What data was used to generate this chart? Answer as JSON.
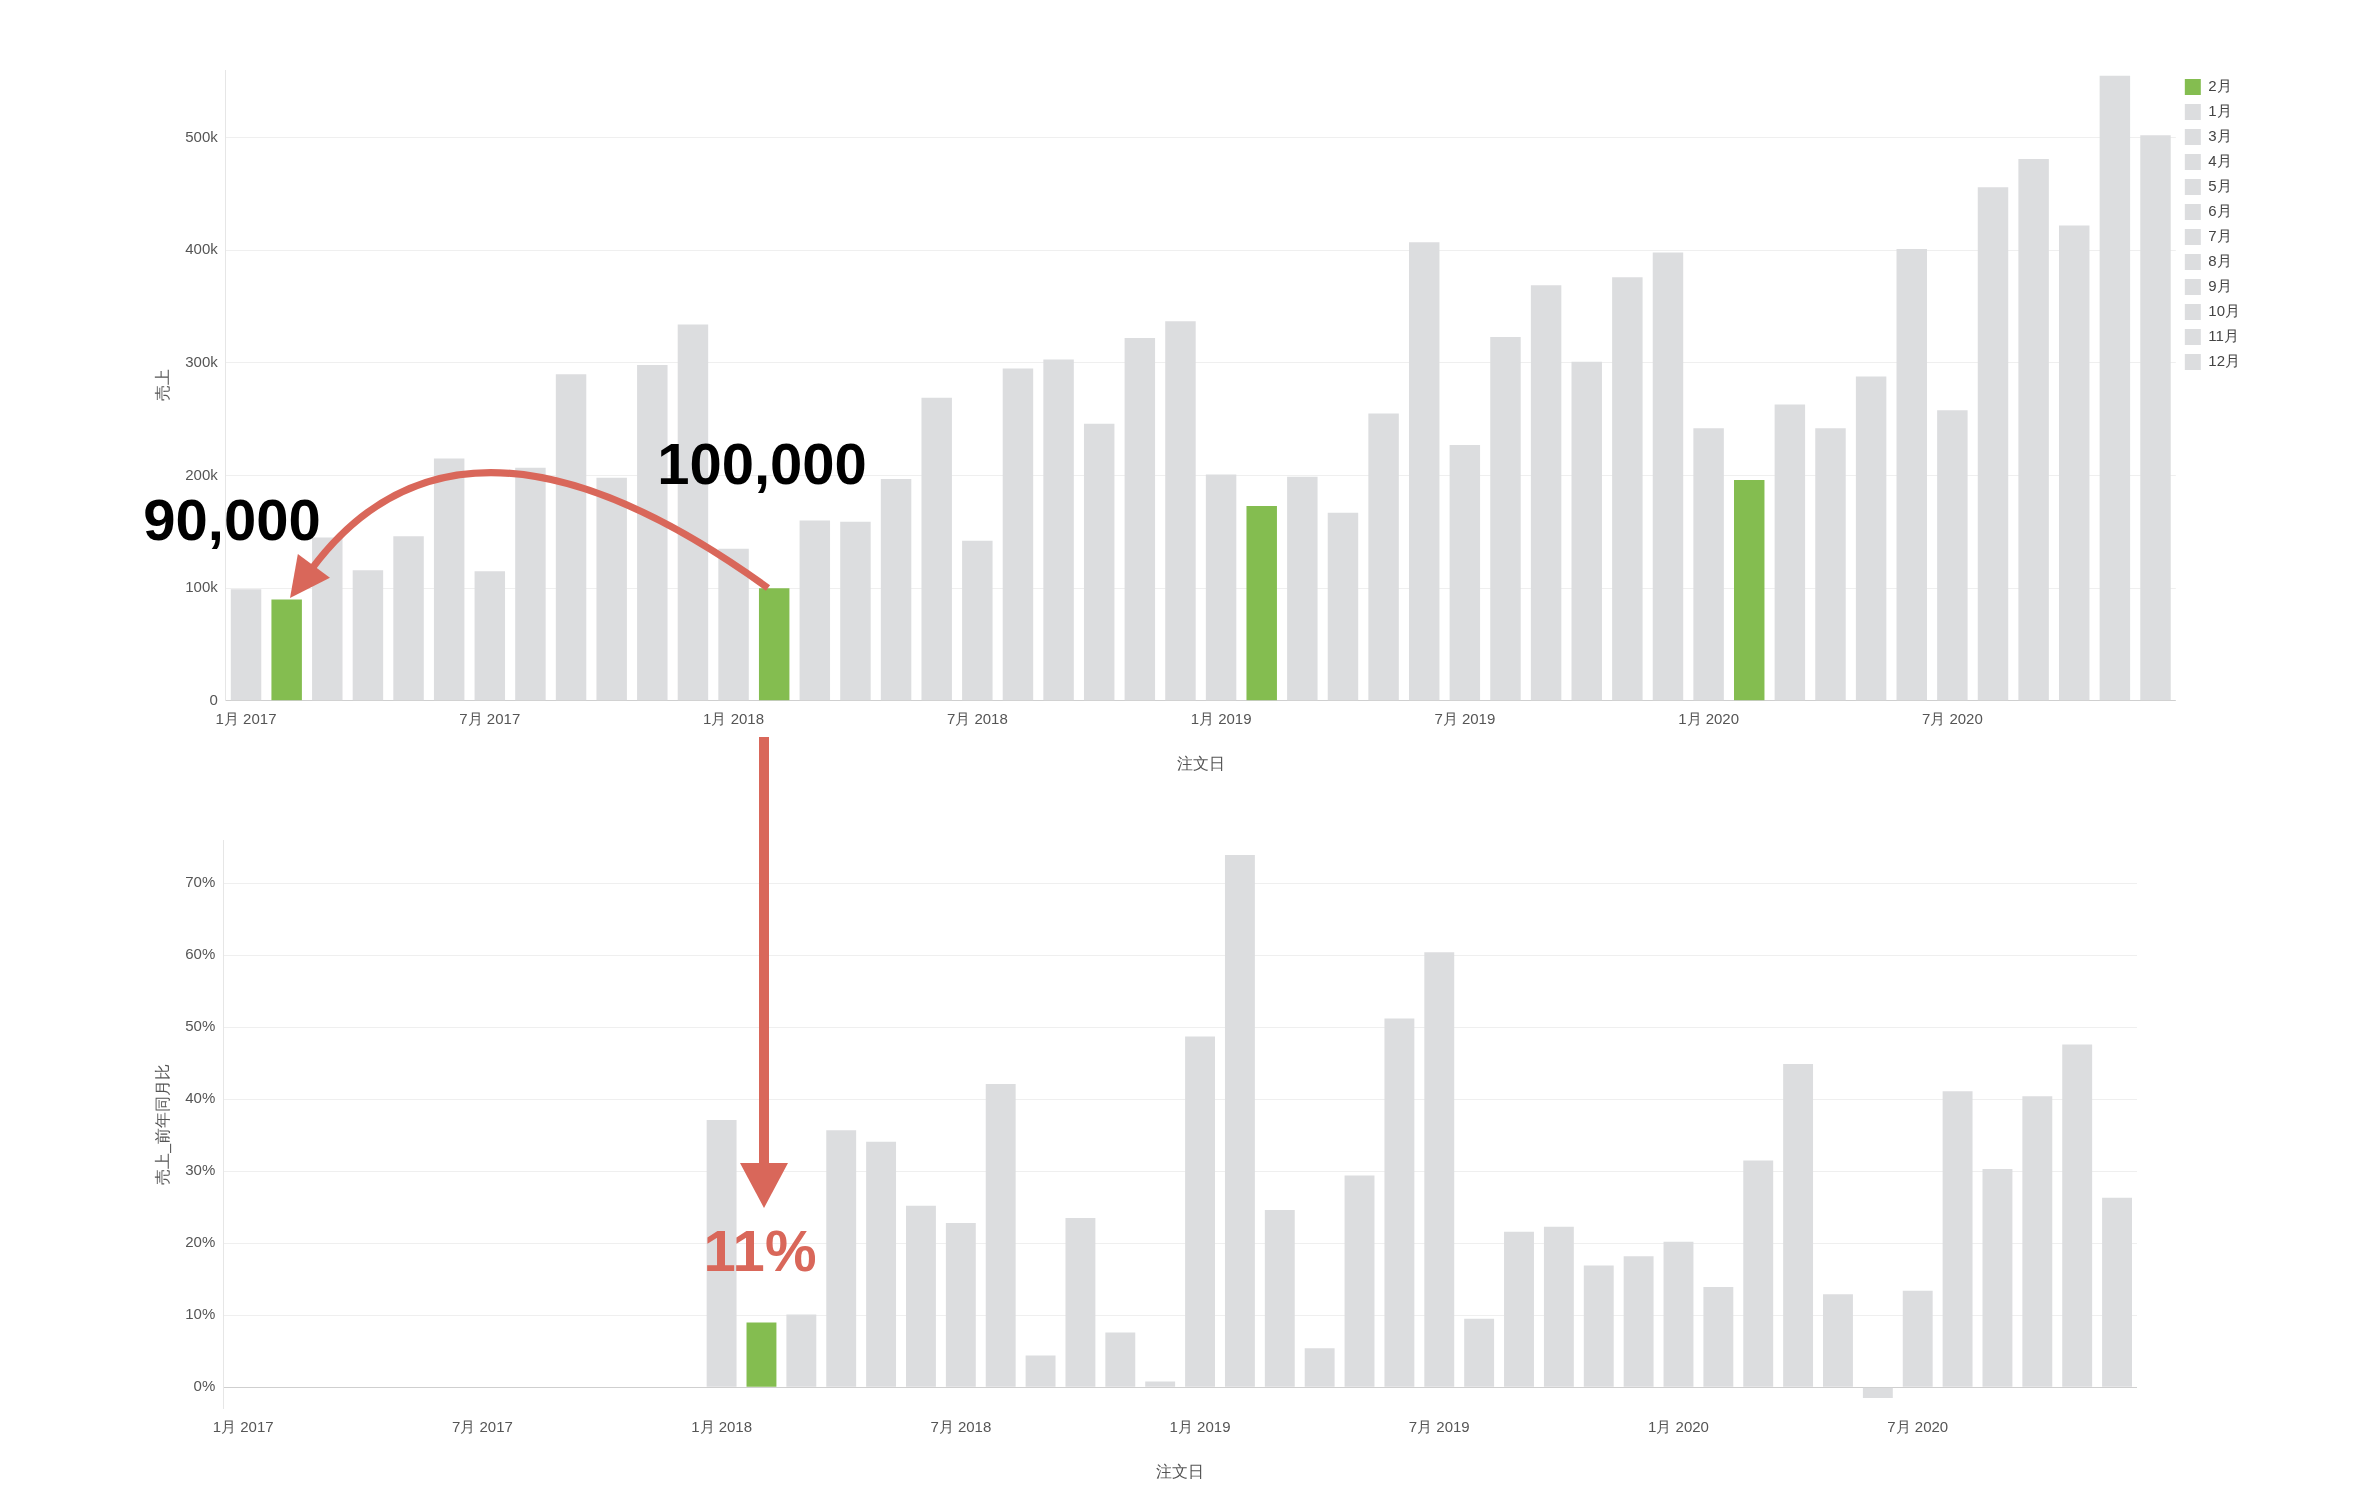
{
  "chart_data": [
    {
      "type": "bar",
      "xlabel": "注文日",
      "ylabel": "売上",
      "stacked": true,
      "legend": "top right",
      "grid": "y",
      "categories": [
        "1月 2017",
        null,
        null,
        null,
        null,
        null,
        "7月 2017",
        null,
        null,
        null,
        null,
        null,
        "1月 2018",
        null,
        null,
        null,
        null,
        null,
        "7月 2018",
        null,
        null,
        null,
        null,
        null,
        "1月 2019",
        null,
        null,
        null,
        null,
        null,
        "7月 2019",
        null,
        null,
        null,
        null,
        null,
        "1月 2020",
        null,
        null,
        null,
        null,
        null,
        "7月 2020",
        null,
        null,
        null,
        null,
        null
      ],
      "ylim": [
        0,
        560000
      ],
      "yticks": [
        0,
        {
          "value": 100000,
          "label": "100k"
        },
        {
          "value": 200000,
          "label": "200k"
        },
        {
          "value": 300000,
          "label": "300k"
        },
        {
          "value": 400000,
          "label": "400k"
        },
        {
          "value": 500000,
          "label": "500k"
        }
      ],
      "series": [
        {
          "name": "2月",
          "color": "#84bd50",
          "values": [
            null,
            90000,
            null,
            null,
            null,
            null,
            null,
            null,
            null,
            null,
            null,
            null,
            null,
            100000,
            null,
            null,
            null,
            null,
            null,
            null,
            null,
            null,
            null,
            null,
            null,
            173000,
            null,
            null,
            null,
            null,
            null,
            null,
            null,
            null,
            null,
            null,
            null,
            196000,
            null,
            null,
            null,
            null,
            null,
            null,
            null,
            null,
            null,
            null
          ]
        },
        {
          "name": "1月",
          "color": "#dcdddf",
          "values": [
            99000,
            null,
            null,
            null,
            null,
            null,
            null,
            null,
            null,
            null,
            null,
            null,
            135000,
            null,
            null,
            null,
            null,
            null,
            null,
            null,
            null,
            null,
            null,
            null,
            201000,
            null,
            null,
            null,
            null,
            null,
            null,
            null,
            null,
            null,
            null,
            null,
            242000,
            null,
            null,
            null,
            null,
            null,
            null,
            null,
            null,
            null,
            null,
            null
          ]
        },
        {
          "name": "3月",
          "color": "#dcdddf",
          "values": [
            null,
            null,
            145000,
            null,
            null,
            null,
            null,
            null,
            null,
            null,
            null,
            null,
            null,
            null,
            160000,
            null,
            null,
            null,
            null,
            null,
            null,
            null,
            null,
            null,
            null,
            null,
            199000,
            null,
            null,
            null,
            null,
            null,
            null,
            null,
            null,
            null,
            null,
            null,
            263000,
            null,
            null,
            null,
            null,
            null,
            null,
            null,
            null,
            null
          ]
        },
        {
          "name": "4月",
          "color": "#dcdddf",
          "values": [
            null,
            null,
            null,
            116000,
            null,
            null,
            null,
            null,
            null,
            null,
            null,
            null,
            null,
            null,
            null,
            159000,
            null,
            null,
            null,
            null,
            null,
            null,
            null,
            null,
            null,
            null,
            null,
            167000,
            null,
            null,
            null,
            null,
            null,
            null,
            null,
            null,
            null,
            null,
            null,
            242000,
            null,
            null,
            null,
            null,
            null,
            null,
            null,
            null
          ]
        },
        {
          "name": "5月",
          "color": "#dcdddf",
          "values": [
            null,
            null,
            null,
            null,
            146000,
            null,
            null,
            null,
            null,
            null,
            null,
            null,
            null,
            null,
            null,
            null,
            197000,
            null,
            null,
            null,
            null,
            null,
            null,
            null,
            null,
            null,
            null,
            null,
            255000,
            null,
            null,
            null,
            null,
            null,
            null,
            null,
            null,
            null,
            null,
            null,
            288000,
            null,
            null,
            null,
            null,
            null,
            null,
            null
          ]
        },
        {
          "name": "6月",
          "color": "#dcdddf",
          "values": [
            null,
            null,
            null,
            null,
            null,
            215000,
            null,
            null,
            null,
            null,
            null,
            null,
            null,
            null,
            null,
            null,
            null,
            269000,
            null,
            null,
            null,
            null,
            null,
            null,
            null,
            null,
            null,
            null,
            null,
            407000,
            null,
            null,
            null,
            null,
            null,
            null,
            null,
            null,
            null,
            null,
            null,
            401000,
            null,
            null,
            null,
            null,
            null,
            null
          ]
        },
        {
          "name": "7月",
          "color": "#dcdddf",
          "values": [
            null,
            null,
            null,
            null,
            null,
            null,
            115000,
            null,
            null,
            null,
            null,
            null,
            null,
            null,
            null,
            null,
            null,
            null,
            142000,
            null,
            null,
            null,
            null,
            null,
            null,
            null,
            null,
            null,
            null,
            null,
            227000,
            null,
            null,
            null,
            null,
            null,
            null,
            null,
            null,
            null,
            null,
            null,
            258000,
            null,
            null,
            null,
            null,
            null
          ]
        },
        {
          "name": "8月",
          "color": "#dcdddf",
          "values": [
            null,
            null,
            null,
            null,
            null,
            null,
            null,
            207000,
            null,
            null,
            null,
            null,
            null,
            null,
            null,
            null,
            null,
            null,
            null,
            295000,
            null,
            null,
            null,
            null,
            null,
            null,
            null,
            null,
            null,
            null,
            null,
            323000,
            null,
            null,
            null,
            null,
            null,
            null,
            null,
            null,
            null,
            null,
            null,
            456000,
            null,
            null,
            null,
            null
          ]
        },
        {
          "name": "9月",
          "color": "#dcdddf",
          "values": [
            null,
            null,
            null,
            null,
            null,
            null,
            null,
            null,
            290000,
            null,
            null,
            null,
            null,
            null,
            null,
            null,
            null,
            null,
            null,
            null,
            303000,
            null,
            null,
            null,
            null,
            null,
            null,
            null,
            null,
            null,
            null,
            null,
            369000,
            null,
            null,
            null,
            null,
            null,
            null,
            null,
            null,
            null,
            null,
            null,
            481000,
            null,
            null,
            null
          ]
        },
        {
          "name": "10月",
          "color": "#dcdddf",
          "values": [
            null,
            null,
            null,
            null,
            null,
            null,
            null,
            null,
            null,
            198000,
            null,
            null,
            null,
            null,
            null,
            null,
            null,
            null,
            null,
            null,
            null,
            246000,
            null,
            null,
            null,
            null,
            null,
            null,
            null,
            null,
            null,
            null,
            null,
            301000,
            null,
            null,
            null,
            null,
            null,
            null,
            null,
            null,
            null,
            null,
            null,
            422000,
            null,
            null
          ]
        },
        {
          "name": "11月",
          "color": "#dcdddf",
          "values": [
            null,
            null,
            null,
            null,
            null,
            null,
            null,
            null,
            null,
            null,
            298000,
            null,
            null,
            null,
            null,
            null,
            null,
            null,
            null,
            null,
            null,
            null,
            322000,
            null,
            null,
            null,
            null,
            null,
            null,
            null,
            null,
            null,
            null,
            null,
            376000,
            null,
            null,
            null,
            null,
            null,
            null,
            null,
            null,
            null,
            null,
            null,
            555000,
            null
          ]
        },
        {
          "name": "12月",
          "color": "#dcdddf",
          "values": [
            null,
            null,
            null,
            null,
            null,
            null,
            null,
            null,
            null,
            null,
            null,
            334000,
            null,
            null,
            null,
            null,
            null,
            null,
            null,
            null,
            null,
            null,
            null,
            337000,
            null,
            null,
            null,
            null,
            null,
            null,
            null,
            null,
            null,
            null,
            null,
            398000,
            null,
            null,
            null,
            null,
            null,
            null,
            null,
            null,
            null,
            null,
            null,
            502000
          ]
        }
      ],
      "annotations": [
        "90,000",
        "100,000"
      ]
    },
    {
      "type": "bar",
      "xlabel": "注文日",
      "ylabel": "売上_前年同月比",
      "grid": "y",
      "categories": [
        "1月 2017",
        null,
        null,
        null,
        null,
        null,
        "7月 2017",
        null,
        null,
        null,
        null,
        null,
        "1月 2018",
        null,
        null,
        null,
        null,
        null,
        "7月 2018",
        null,
        null,
        null,
        null,
        null,
        "1月 2019",
        null,
        null,
        null,
        null,
        null,
        "7月 2019",
        null,
        null,
        null,
        null,
        null,
        "1月 2020",
        null,
        null,
        null,
        null,
        null,
        "7月 2020",
        null,
        null,
        null,
        null,
        null
      ],
      "ylim": [
        -3,
        76
      ],
      "yticks": [
        {
          "value": 0,
          "label": "0%"
        },
        {
          "value": 10,
          "label": "10%"
        },
        {
          "value": 20,
          "label": "20%"
        },
        {
          "value": 30,
          "label": "30%"
        },
        {
          "value": 40,
          "label": "40%"
        },
        {
          "value": 50,
          "label": "50%"
        },
        {
          "value": 60,
          "label": "60%"
        },
        {
          "value": 70,
          "label": "70%"
        }
      ],
      "values": [
        null,
        null,
        null,
        null,
        null,
        null,
        null,
        null,
        null,
        null,
        null,
        null,
        37.1,
        9.0,
        10.1,
        35.7,
        34.1,
        25.2,
        22.8,
        42.1,
        4.4,
        23.5,
        7.6,
        0.8,
        48.7,
        73.9,
        24.6,
        5.4,
        29.4,
        51.2,
        60.4,
        9.5,
        21.6,
        22.3,
        16.9,
        18.2,
        20.2,
        13.9,
        31.5,
        44.9,
        12.9,
        -1.5,
        13.4,
        41.1,
        30.3,
        40.4,
        47.6,
        26.3
      ],
      "colors": [
        "#dcdddf",
        "#dcdddf",
        "#dcdddf",
        "#dcdddf",
        "#dcdddf",
        "#dcdddf",
        "#dcdddf",
        "#dcdddf",
        "#dcdddf",
        "#dcdddf",
        "#dcdddf",
        "#dcdddf",
        "#dcdddf",
        "#84bd50",
        "#dcdddf",
        "#dcdddf",
        "#dcdddf",
        "#dcdddf",
        "#dcdddf",
        "#dcdddf",
        "#dcdddf",
        "#dcdddf",
        "#dcdddf",
        "#dcdddf",
        "#dcdddf",
        "#dcdddf",
        "#dcdddf",
        "#dcdddf",
        "#dcdddf",
        "#dcdddf",
        "#dcdddf",
        "#dcdddf",
        "#dcdddf",
        "#dcdddf",
        "#dcdddf",
        "#dcdddf",
        "#dcdddf",
        "#dcdddf",
        "#dcdddf",
        "#dcdddf",
        "#dcdddf",
        "#dcdddf",
        "#dcdddf",
        "#dcdddf",
        "#dcdddf",
        "#dcdddf",
        "#dcdddf",
        "#dcdddf"
      ],
      "annotations": [
        "11%"
      ]
    }
  ]
}
